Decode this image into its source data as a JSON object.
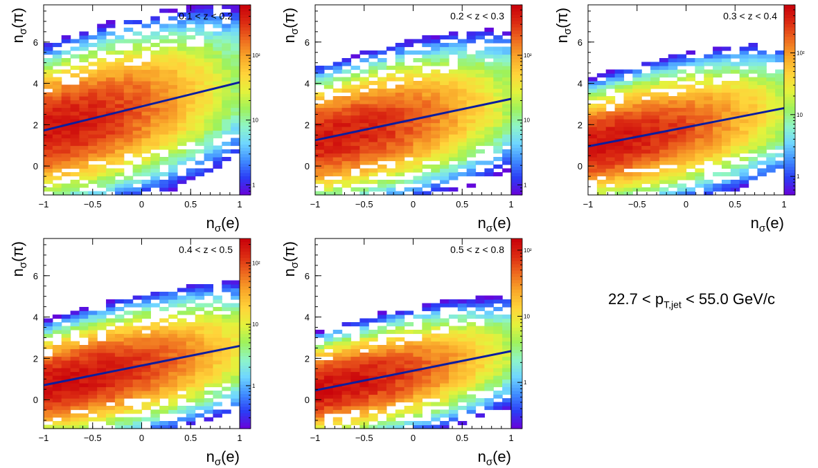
{
  "overall_label": {
    "prefix": "22.7 < p",
    "subscript": "T,jet",
    "suffix": " < 55.0 GeV/c"
  },
  "axis_text": {
    "x_main": "n",
    "x_sub": "σ",
    "x_tail": "(e)",
    "y_main": "n",
    "y_sub": "σ",
    "y_tail": "(π)"
  },
  "color_palette": [
    "#6a00d8",
    "#2b3cf5",
    "#3f8cff",
    "#6fd6ff",
    "#8ef5c8",
    "#9ef25a",
    "#e4f23c",
    "#ffd43a",
    "#f9a72a",
    "#ee6a1f",
    "#db2a12",
    "#c8000a"
  ],
  "fit_line_color": "#0b1d9e",
  "chart_data": [
    {
      "type": "heatmap",
      "label": "0.1 < z < 0.2",
      "xlim": [
        -1,
        1
      ],
      "ylim": [
        -1.4,
        7.8
      ],
      "xticks": [
        "−1",
        "−0.5",
        "0",
        "0.5",
        "1"
      ],
      "yticks": [
        "0",
        "2",
        "4",
        "6"
      ],
      "colorbar_scale": "log",
      "colorbar_range": [
        0.7,
        600
      ],
      "colorbar_ticks": [
        "1",
        "10",
        "10²"
      ],
      "fit_line": {
        "x": [
          -1,
          1
        ],
        "y": [
          1.72,
          4.05
        ]
      },
      "band_width": 1.15,
      "peak_x": -0.95,
      "peak_count": 450
    },
    {
      "type": "heatmap",
      "label": "0.2 < z < 0.3",
      "xlim": [
        -1,
        1
      ],
      "ylim": [
        -1.4,
        7.8
      ],
      "xticks": [
        "−1",
        "−0.5",
        "0",
        "0.5",
        "1"
      ],
      "yticks": [
        "0",
        "2",
        "4",
        "6"
      ],
      "colorbar_scale": "log",
      "colorbar_range": [
        0.7,
        600
      ],
      "colorbar_ticks": [
        "1",
        "10",
        "10²"
      ],
      "fit_line": {
        "x": [
          -1,
          1
        ],
        "y": [
          1.25,
          3.25
        ]
      },
      "band_width": 1.0,
      "peak_x": -0.85,
      "peak_count": 420
    },
    {
      "type": "heatmap",
      "label": "0.3 < z < 0.4",
      "xlim": [
        -1,
        1
      ],
      "ylim": [
        -1.4,
        7.8
      ],
      "xticks": [
        "−1",
        "−0.5",
        "0",
        "0.5",
        "1"
      ],
      "yticks": [
        "0",
        "2",
        "4",
        "6"
      ],
      "colorbar_scale": "log",
      "colorbar_range": [
        0.5,
        600
      ],
      "colorbar_ticks": [
        "1",
        "10",
        "10²"
      ],
      "fit_line": {
        "x": [
          -1,
          1
        ],
        "y": [
          0.95,
          2.8
        ]
      },
      "band_width": 0.9,
      "peak_x": -0.85,
      "peak_count": 450
    },
    {
      "type": "heatmap",
      "label": "0.4 < z < 0.5",
      "xlim": [
        -1,
        1
      ],
      "ylim": [
        -1.4,
        7.8
      ],
      "xticks": [
        "−1",
        "−0.5",
        "0",
        "0.5",
        "1"
      ],
      "yticks": [
        "0",
        "2",
        "4",
        "6"
      ],
      "colorbar_scale": "log",
      "colorbar_range": [
        0.2,
        250
      ],
      "colorbar_ticks": [
        "1",
        "10",
        "10²"
      ],
      "fit_line": {
        "x": [
          -1,
          1
        ],
        "y": [
          0.7,
          2.6
        ]
      },
      "band_width": 0.85,
      "peak_x": -0.75,
      "peak_count": 200
    },
    {
      "type": "heatmap",
      "label": "0.5 < z < 0.8",
      "xlim": [
        -1,
        1
      ],
      "ylim": [
        -1.4,
        7.8
      ],
      "xticks": [
        "−1",
        "−0.5",
        "0",
        "0.5",
        "1"
      ],
      "yticks": [
        "0",
        "2",
        "4",
        "6"
      ],
      "colorbar_scale": "log",
      "colorbar_range": [
        0.2,
        150
      ],
      "colorbar_ticks": [
        "1",
        "10",
        "10²"
      ],
      "fit_line": {
        "x": [
          -1,
          1
        ],
        "y": [
          0.45,
          2.35
        ]
      },
      "band_width": 0.8,
      "peak_x": -0.85,
      "peak_count": 120
    }
  ]
}
